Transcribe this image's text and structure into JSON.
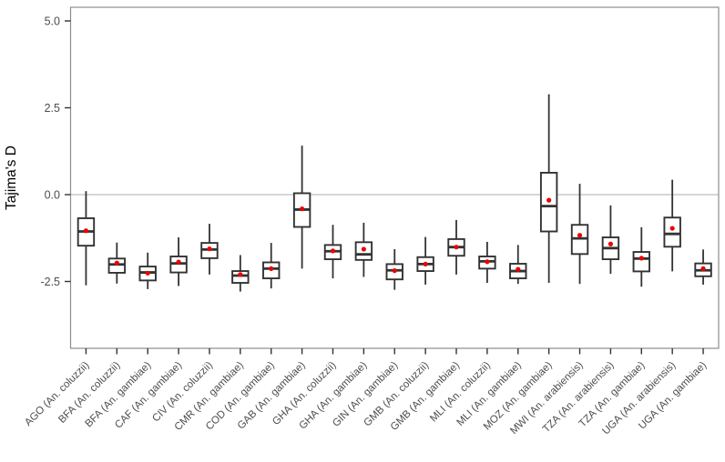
{
  "chart_data": {
    "type": "boxplot",
    "title": "",
    "xlabel": "",
    "ylabel": "Tajima's D",
    "ylim": [
      -4.45,
      5.4
    ],
    "yticks": [
      {
        "value": 5.0,
        "label": "5.0"
      },
      {
        "value": 2.5,
        "label": "2.5"
      },
      {
        "value": 0.0,
        "label": "0.0"
      },
      {
        "value": -2.5,
        "label": "-2.5"
      }
    ],
    "reference_line_y": 0,
    "grid": "none; single light horizontal reference line at y = 0",
    "legend": "none",
    "mean_marker": "red filled point at group mean",
    "x_label_rotation_deg": 45,
    "categories": [
      "AGO (An. coluzzii)",
      "BFA (An. coluzzii)",
      "BFA (An. gambiae)",
      "CAF (An. gambiae)",
      "CIV (An. coluzzii)",
      "CMR (An. gambiae)",
      "COD (An. gambiae)",
      "GAB (An. gambiae)",
      "GHA (An. coluzzii)",
      "GHA (An. gambiae)",
      "GIN (An. gambiae)",
      "GMB (An. coluzzii)",
      "GMB (An. gambiae)",
      "MLI (An. coluzzii)",
      "MLI (An. gambiae)",
      "MOZ (An. gambiae)",
      "MWI (An. arabiensis)",
      "TZA (An. arabiensis)",
      "TZA (An. gambiae)",
      "UGA (An. arabiensis)",
      "UGA (An. gambiae)"
    ],
    "boxes": [
      {
        "label": "AGO (An. coluzzii)",
        "whisker_low": -2.61,
        "q1": -1.47,
        "median": -1.06,
        "mean": -1.04,
        "q3": -0.68,
        "whisker_high": 0.1
      },
      {
        "label": "BFA (An. coluzzii)",
        "whisker_low": -2.56,
        "q1": -2.25,
        "median": -2.01,
        "mean": -1.97,
        "q3": -1.84,
        "whisker_high": -1.38
      },
      {
        "label": "BFA (An. gambiae)",
        "whisker_low": -2.72,
        "q1": -2.47,
        "median": -2.24,
        "mean": -2.26,
        "q3": -2.07,
        "whisker_high": -1.67
      },
      {
        "label": "CAF (An. gambiae)",
        "whisker_low": -2.63,
        "q1": -2.24,
        "median": -1.98,
        "mean": -1.94,
        "q3": -1.78,
        "whisker_high": -1.23
      },
      {
        "label": "CIV (An. coluzzii)",
        "whisker_low": -2.3,
        "q1": -1.83,
        "median": -1.58,
        "mean": -1.56,
        "q3": -1.39,
        "whisker_high": -0.84
      },
      {
        "label": "CMR (An. gambiae)",
        "whisker_low": -2.79,
        "q1": -2.54,
        "median": -2.33,
        "mean": -2.3,
        "q3": -2.2,
        "whisker_high": -1.74
      },
      {
        "label": "COD (An. gambiae)",
        "whisker_low": -2.7,
        "q1": -2.41,
        "median": -2.13,
        "mean": -2.13,
        "q3": -1.95,
        "whisker_high": -1.39
      },
      {
        "label": "GAB (An. gambiae)",
        "whisker_low": -2.13,
        "q1": -0.93,
        "median": -0.43,
        "mean": -0.41,
        "q3": 0.04,
        "whisker_high": 1.41
      },
      {
        "label": "GHA (An. coluzzii)",
        "whisker_low": -2.41,
        "q1": -1.86,
        "median": -1.63,
        "mean": -1.62,
        "q3": -1.45,
        "whisker_high": -0.87
      },
      {
        "label": "GHA (An. gambiae)",
        "whisker_low": -2.37,
        "q1": -1.88,
        "median": -1.72,
        "mean": -1.57,
        "q3": -1.37,
        "whisker_high": -0.81
      },
      {
        "label": "GIN (An. gambiae)",
        "whisker_low": -2.74,
        "q1": -2.44,
        "median": -2.18,
        "mean": -2.19,
        "q3": -2.0,
        "whisker_high": -1.57
      },
      {
        "label": "GMB (An. coluzzii)",
        "whisker_low": -2.59,
        "q1": -2.2,
        "median": -2.0,
        "mean": -2.0,
        "q3": -1.8,
        "whisker_high": -1.22
      },
      {
        "label": "GMB (An. gambiae)",
        "whisker_low": -2.3,
        "q1": -1.76,
        "median": -1.51,
        "mean": -1.51,
        "q3": -1.28,
        "whisker_high": -0.73
      },
      {
        "label": "MLI (An. coluzzii)",
        "whisker_low": -2.54,
        "q1": -2.13,
        "median": -1.92,
        "mean": -1.93,
        "q3": -1.78,
        "whisker_high": -1.36
      },
      {
        "label": "MLI (An. gambiae)",
        "whisker_low": -2.57,
        "q1": -2.41,
        "median": -2.2,
        "mean": -2.15,
        "q3": -1.99,
        "whisker_high": -1.45
      },
      {
        "label": "MOZ (An. gambiae)",
        "whisker_low": -2.54,
        "q1": -1.06,
        "median": -0.33,
        "mean": -0.16,
        "q3": 0.63,
        "whisker_high": 2.89
      },
      {
        "label": "MWI (An. arabiensis)",
        "whisker_low": -2.57,
        "q1": -1.71,
        "median": -1.26,
        "mean": -1.17,
        "q3": -0.87,
        "whisker_high": 0.31
      },
      {
        "label": "TZA (An. arabiensis)",
        "whisker_low": -2.28,
        "q1": -1.86,
        "median": -1.54,
        "mean": -1.42,
        "q3": -1.23,
        "whisker_high": -0.31
      },
      {
        "label": "TZA (An. gambiae)",
        "whisker_low": -2.65,
        "q1": -2.21,
        "median": -1.84,
        "mean": -1.83,
        "q3": -1.65,
        "whisker_high": -0.94
      },
      {
        "label": "UGA (An. arabiensis)",
        "whisker_low": -2.21,
        "q1": -1.5,
        "median": -1.13,
        "mean": -0.97,
        "q3": -0.66,
        "whisker_high": 0.43
      },
      {
        "label": "UGA (An. gambiae)",
        "whisker_low": -2.59,
        "q1": -2.35,
        "median": -2.18,
        "mean": -2.13,
        "q3": -1.98,
        "whisker_high": -1.58
      }
    ],
    "colors": {
      "box_stroke": "#333333",
      "box_fill": "#ffffff",
      "median_line": "#333333",
      "mean_point": "#ee0000",
      "reference_line": "#c9c9c9",
      "panel_border": "#8c8c8c",
      "axis_tick": "#333333",
      "tick_label_text": "#4d4d4d",
      "axis_title_text": "#000000",
      "background": "#ffffff"
    }
  }
}
